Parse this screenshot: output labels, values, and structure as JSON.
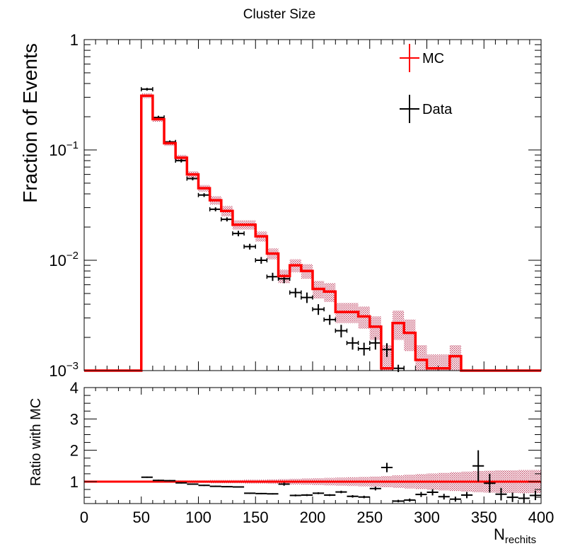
{
  "chart_data": [
    {
      "type": "step-histogram",
      "title": "Cluster Size",
      "ylabel": "Fraction of Events",
      "xlabel_main": "N",
      "xlabel_sub": "rechits",
      "xlim": [
        0,
        400
      ],
      "ylim": [
        0.001,
        1
      ],
      "yscale": "log",
      "x_ticks": [
        0,
        50,
        100,
        150,
        200,
        250,
        300,
        350,
        400
      ],
      "y_tick_labels": [
        {
          "value": 1,
          "base": "1",
          "exp": ""
        },
        {
          "value": 0.1,
          "base": "10",
          "exp": "−1"
        },
        {
          "value": 0.01,
          "base": "10",
          "exp": "−2"
        },
        {
          "value": 0.001,
          "base": "10",
          "exp": "−3"
        }
      ],
      "legend": {
        "placement": "top-right",
        "entries": [
          {
            "label": "MC",
            "color": "#ff0000"
          },
          {
            "label": "Data",
            "color": "#000000"
          }
        ]
      },
      "bin_width": 10,
      "series": [
        {
          "name": "MC",
          "style": "step",
          "color": "#ff0000",
          "band_color": "#c04060",
          "points": [
            {
              "x": 55,
              "y": 0.31,
              "lo": 0.295,
              "hi": 0.325
            },
            {
              "x": 65,
              "y": 0.19,
              "lo": 0.18,
              "hi": 0.2
            },
            {
              "x": 75,
              "y": 0.115,
              "lo": 0.109,
              "hi": 0.121
            },
            {
              "x": 85,
              "y": 0.085,
              "lo": 0.08,
              "hi": 0.09
            },
            {
              "x": 95,
              "y": 0.06,
              "lo": 0.056,
              "hi": 0.064
            },
            {
              "x": 105,
              "y": 0.045,
              "lo": 0.042,
              "hi": 0.048
            },
            {
              "x": 115,
              "y": 0.035,
              "lo": 0.032,
              "hi": 0.038
            },
            {
              "x": 125,
              "y": 0.028,
              "lo": 0.025,
              "hi": 0.031
            },
            {
              "x": 135,
              "y": 0.021,
              "lo": 0.019,
              "hi": 0.023
            },
            {
              "x": 145,
              "y": 0.021,
              "lo": 0.019,
              "hi": 0.023
            },
            {
              "x": 155,
              "y": 0.0165,
              "lo": 0.0148,
              "hi": 0.0182
            },
            {
              "x": 165,
              "y": 0.0115,
              "lo": 0.0102,
              "hi": 0.0128
            },
            {
              "x": 175,
              "y": 0.0072,
              "lo": 0.0062,
              "hi": 0.0082
            },
            {
              "x": 185,
              "y": 0.009,
              "lo": 0.0078,
              "hi": 0.0102
            },
            {
              "x": 195,
              "y": 0.008,
              "lo": 0.0068,
              "hi": 0.0092
            },
            {
              "x": 205,
              "y": 0.0055,
              "lo": 0.0045,
              "hi": 0.0065
            },
            {
              "x": 215,
              "y": 0.0052,
              "lo": 0.0042,
              "hi": 0.0062
            },
            {
              "x": 225,
              "y": 0.0034,
              "lo": 0.0027,
              "hi": 0.0041
            },
            {
              "x": 235,
              "y": 0.0034,
              "lo": 0.0027,
              "hi": 0.0041
            },
            {
              "x": 245,
              "y": 0.0031,
              "lo": 0.0024,
              "hi": 0.0038
            },
            {
              "x": 255,
              "y": 0.0025,
              "lo": 0.0019,
              "hi": 0.0031
            },
            {
              "x": 265,
              "y": 0.00105,
              "lo": 0.001,
              "hi": 0.0017
            },
            {
              "x": 275,
              "y": 0.0027,
              "lo": 0.0019,
              "hi": 0.0035
            },
            {
              "x": 285,
              "y": 0.0022,
              "lo": 0.0015,
              "hi": 0.0029
            },
            {
              "x": 295,
              "y": 0.00125,
              "lo": 0.001,
              "hi": 0.0017
            },
            {
              "x": 305,
              "y": 0.00105,
              "lo": 0.001,
              "hi": 0.0014
            },
            {
              "x": 315,
              "y": 0.00105,
              "lo": 0.001,
              "hi": 0.0014
            },
            {
              "x": 325,
              "y": 0.00135,
              "lo": 0.001,
              "hi": 0.0017
            },
            {
              "x": 335,
              "y": 0.001,
              "lo": 0.001,
              "hi": 0.001
            },
            {
              "x": 345,
              "y": 0.001,
              "lo": 0.001,
              "hi": 0.001
            },
            {
              "x": 355,
              "y": 0.001,
              "lo": 0.001,
              "hi": 0.001
            },
            {
              "x": 365,
              "y": 0.001,
              "lo": 0.001,
              "hi": 0.001
            },
            {
              "x": 375,
              "y": 0.001,
              "lo": 0.001,
              "hi": 0.001
            },
            {
              "x": 385,
              "y": 0.001,
              "lo": 0.001,
              "hi": 0.001
            },
            {
              "x": 395,
              "y": 0.001,
              "lo": 0.001,
              "hi": 0.001
            }
          ]
        },
        {
          "name": "Data",
          "style": "errorbar",
          "color": "#000000",
          "points": [
            {
              "x": 55,
              "y": 0.355,
              "lo": 0.345,
              "hi": 0.365
            },
            {
              "x": 65,
              "y": 0.197,
              "lo": 0.19,
              "hi": 0.204
            },
            {
              "x": 75,
              "y": 0.118,
              "lo": 0.114,
              "hi": 0.122
            },
            {
              "x": 85,
              "y": 0.08,
              "lo": 0.077,
              "hi": 0.083
            },
            {
              "x": 95,
              "y": 0.055,
              "lo": 0.053,
              "hi": 0.057
            },
            {
              "x": 105,
              "y": 0.039,
              "lo": 0.0375,
              "hi": 0.0405
            },
            {
              "x": 115,
              "y": 0.029,
              "lo": 0.0278,
              "hi": 0.0302
            },
            {
              "x": 125,
              "y": 0.0235,
              "lo": 0.0225,
              "hi": 0.0245
            },
            {
              "x": 135,
              "y": 0.0175,
              "lo": 0.0165,
              "hi": 0.0185
            },
            {
              "x": 145,
              "y": 0.0133,
              "lo": 0.0125,
              "hi": 0.0141
            },
            {
              "x": 155,
              "y": 0.01,
              "lo": 0.0093,
              "hi": 0.0107
            },
            {
              "x": 165,
              "y": 0.0071,
              "lo": 0.0065,
              "hi": 0.0077
            },
            {
              "x": 175,
              "y": 0.0068,
              "lo": 0.0062,
              "hi": 0.0074
            },
            {
              "x": 185,
              "y": 0.0051,
              "lo": 0.0046,
              "hi": 0.0056
            },
            {
              "x": 195,
              "y": 0.0046,
              "lo": 0.0041,
              "hi": 0.0051
            },
            {
              "x": 205,
              "y": 0.0036,
              "lo": 0.0032,
              "hi": 0.004
            },
            {
              "x": 215,
              "y": 0.0029,
              "lo": 0.0026,
              "hi": 0.0032
            },
            {
              "x": 225,
              "y": 0.0023,
              "lo": 0.002,
              "hi": 0.0026
            },
            {
              "x": 235,
              "y": 0.00178,
              "lo": 0.00155,
              "hi": 0.00201
            },
            {
              "x": 245,
              "y": 0.00158,
              "lo": 0.00137,
              "hi": 0.00179
            },
            {
              "x": 255,
              "y": 0.00178,
              "lo": 0.00155,
              "hi": 0.00201
            },
            {
              "x": 265,
              "y": 0.00155,
              "lo": 0.00133,
              "hi": 0.00177
            },
            {
              "x": 275,
              "y": 0.00105,
              "lo": 0.00097,
              "hi": 0.00113
            }
          ]
        }
      ]
    },
    {
      "type": "ratio",
      "ylabel": "Ratio with MC",
      "xlim": [
        0,
        400
      ],
      "ylim": [
        0.3,
        4
      ],
      "y_ticks": [
        1,
        2,
        3,
        4
      ],
      "reference_line": {
        "y": 1,
        "color": "#ff0000"
      },
      "band": [
        {
          "x0": 50,
          "x1": 60,
          "lo": 0.97,
          "hi": 1.03
        },
        {
          "x0": 60,
          "x1": 70,
          "lo": 0.97,
          "hi": 1.03
        },
        {
          "x0": 70,
          "x1": 80,
          "lo": 0.97,
          "hi": 1.03
        },
        {
          "x0": 80,
          "x1": 90,
          "lo": 0.96,
          "hi": 1.04
        },
        {
          "x0": 90,
          "x1": 100,
          "lo": 0.96,
          "hi": 1.04
        },
        {
          "x0": 100,
          "x1": 110,
          "lo": 0.96,
          "hi": 1.04
        },
        {
          "x0": 110,
          "x1": 120,
          "lo": 0.95,
          "hi": 1.05
        },
        {
          "x0": 120,
          "x1": 130,
          "lo": 0.95,
          "hi": 1.05
        },
        {
          "x0": 130,
          "x1": 140,
          "lo": 0.95,
          "hi": 1.05
        },
        {
          "x0": 140,
          "x1": 150,
          "lo": 0.94,
          "hi": 1.06
        },
        {
          "x0": 150,
          "x1": 160,
          "lo": 0.94,
          "hi": 1.06
        },
        {
          "x0": 160,
          "x1": 170,
          "lo": 0.93,
          "hi": 1.07
        },
        {
          "x0": 170,
          "x1": 180,
          "lo": 0.92,
          "hi": 1.08
        },
        {
          "x0": 180,
          "x1": 190,
          "lo": 0.91,
          "hi": 1.09
        },
        {
          "x0": 190,
          "x1": 200,
          "lo": 0.9,
          "hi": 1.1
        },
        {
          "x0": 200,
          "x1": 210,
          "lo": 0.89,
          "hi": 1.11
        },
        {
          "x0": 210,
          "x1": 220,
          "lo": 0.88,
          "hi": 1.12
        },
        {
          "x0": 220,
          "x1": 230,
          "lo": 0.87,
          "hi": 1.13
        },
        {
          "x0": 230,
          "x1": 240,
          "lo": 0.86,
          "hi": 1.14
        },
        {
          "x0": 240,
          "x1": 250,
          "lo": 0.85,
          "hi": 1.15
        },
        {
          "x0": 250,
          "x1": 260,
          "lo": 0.84,
          "hi": 1.16
        },
        {
          "x0": 260,
          "x1": 270,
          "lo": 0.82,
          "hi": 1.18
        },
        {
          "x0": 270,
          "x1": 280,
          "lo": 0.8,
          "hi": 1.2
        },
        {
          "x0": 280,
          "x1": 290,
          "lo": 0.78,
          "hi": 1.22
        },
        {
          "x0": 290,
          "x1": 300,
          "lo": 0.76,
          "hi": 1.24
        },
        {
          "x0": 300,
          "x1": 310,
          "lo": 0.74,
          "hi": 1.26
        },
        {
          "x0": 310,
          "x1": 320,
          "lo": 0.72,
          "hi": 1.28
        },
        {
          "x0": 320,
          "x1": 330,
          "lo": 0.7,
          "hi": 1.3
        },
        {
          "x0": 330,
          "x1": 340,
          "lo": 0.68,
          "hi": 1.32
        },
        {
          "x0": 340,
          "x1": 350,
          "lo": 0.66,
          "hi": 1.34
        },
        {
          "x0": 350,
          "x1": 360,
          "lo": 0.65,
          "hi": 1.35
        },
        {
          "x0": 360,
          "x1": 370,
          "lo": 0.64,
          "hi": 1.36
        },
        {
          "x0": 370,
          "x1": 380,
          "lo": 0.64,
          "hi": 1.36
        },
        {
          "x0": 380,
          "x1": 390,
          "lo": 0.63,
          "hi": 1.37
        },
        {
          "x0": 390,
          "x1": 400,
          "lo": 0.63,
          "hi": 1.37
        }
      ],
      "points": [
        {
          "x": 55,
          "y": 1.14,
          "err": 0.02
        },
        {
          "x": 65,
          "y": 1.04,
          "err": 0.02
        },
        {
          "x": 75,
          "y": 1.03,
          "err": 0.02
        },
        {
          "x": 85,
          "y": 0.96,
          "err": 0.02
        },
        {
          "x": 95,
          "y": 0.92,
          "err": 0.02
        },
        {
          "x": 105,
          "y": 0.88,
          "err": 0.02
        },
        {
          "x": 115,
          "y": 0.85,
          "err": 0.02
        },
        {
          "x": 125,
          "y": 0.84,
          "err": 0.02
        },
        {
          "x": 135,
          "y": 0.83,
          "err": 0.02
        },
        {
          "x": 145,
          "y": 0.63,
          "err": 0.02
        },
        {
          "x": 155,
          "y": 0.62,
          "err": 0.02
        },
        {
          "x": 165,
          "y": 0.61,
          "err": 0.02
        },
        {
          "x": 175,
          "y": 0.92,
          "err": 0.05
        },
        {
          "x": 185,
          "y": 0.56,
          "err": 0.03
        },
        {
          "x": 195,
          "y": 0.57,
          "err": 0.03
        },
        {
          "x": 205,
          "y": 0.63,
          "err": 0.03
        },
        {
          "x": 215,
          "y": 0.57,
          "err": 0.03
        },
        {
          "x": 225,
          "y": 0.67,
          "err": 0.04
        },
        {
          "x": 235,
          "y": 0.53,
          "err": 0.04
        },
        {
          "x": 245,
          "y": 0.51,
          "err": 0.04
        },
        {
          "x": 255,
          "y": 0.78,
          "err": 0.06
        },
        {
          "x": 265,
          "y": 1.45,
          "err": 0.15
        },
        {
          "x": 275,
          "y": 0.38,
          "err": 0.04
        },
        {
          "x": 285,
          "y": 0.41,
          "err": 0.05
        },
        {
          "x": 295,
          "y": 0.59,
          "err": 0.08
        },
        {
          "x": 305,
          "y": 0.66,
          "err": 0.1
        },
        {
          "x": 315,
          "y": 0.52,
          "err": 0.09
        },
        {
          "x": 325,
          "y": 0.44,
          "err": 0.08
        },
        {
          "x": 335,
          "y": 0.57,
          "err": 0.1
        },
        {
          "x": 345,
          "y": 1.5,
          "err": 0.5
        },
        {
          "x": 355,
          "y": 0.95,
          "err": 0.3
        },
        {
          "x": 365,
          "y": 0.6,
          "err": 0.2
        },
        {
          "x": 375,
          "y": 0.5,
          "err": 0.15
        },
        {
          "x": 385,
          "y": 0.47,
          "err": 0.15
        },
        {
          "x": 395,
          "y": 0.56,
          "err": 0.15
        }
      ]
    }
  ]
}
